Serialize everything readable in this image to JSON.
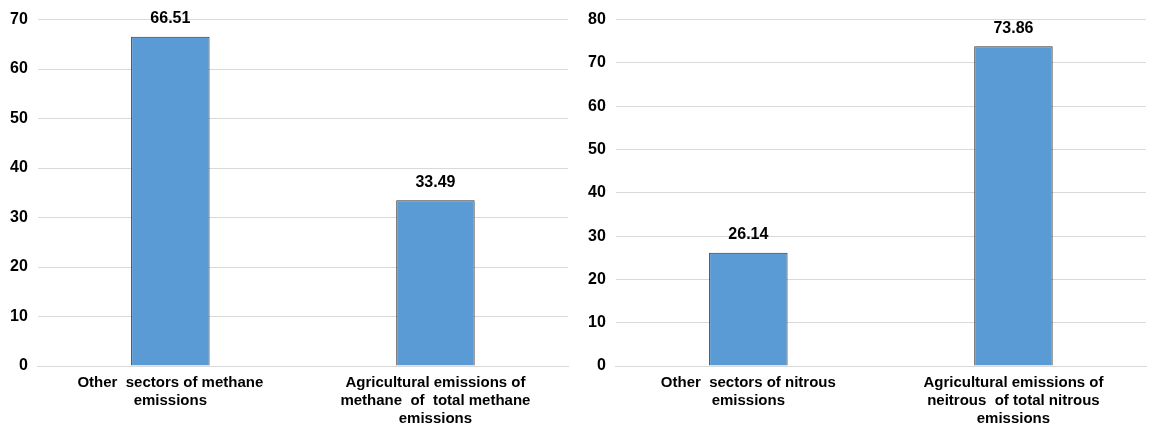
{
  "chart_data": [
    {
      "type": "bar",
      "categories": [
        "Other  sectors of methane emissions",
        "Agricultural emissions of methane  of  total methane emissions"
      ],
      "values": [
        66.51,
        33.49
      ],
      "color": "#5b9bd5",
      "ylim": [
        0,
        70
      ],
      "yticks": [
        0,
        10,
        20,
        30,
        40,
        50,
        60,
        70
      ],
      "grid": "y",
      "legend": false,
      "data_labels": true
    },
    {
      "type": "bar",
      "categories": [
        "Other  sectors of nitrous emissions",
        "Agricultural emissions of neitrous  of total nitrous emissions"
      ],
      "values": [
        26.14,
        73.86
      ],
      "color": "#5b9bd5",
      "ylim": [
        0,
        80
      ],
      "yticks": [
        0,
        10,
        20,
        30,
        40,
        50,
        60,
        70,
        80
      ],
      "grid": "y",
      "legend": false,
      "data_labels": true
    }
  ]
}
